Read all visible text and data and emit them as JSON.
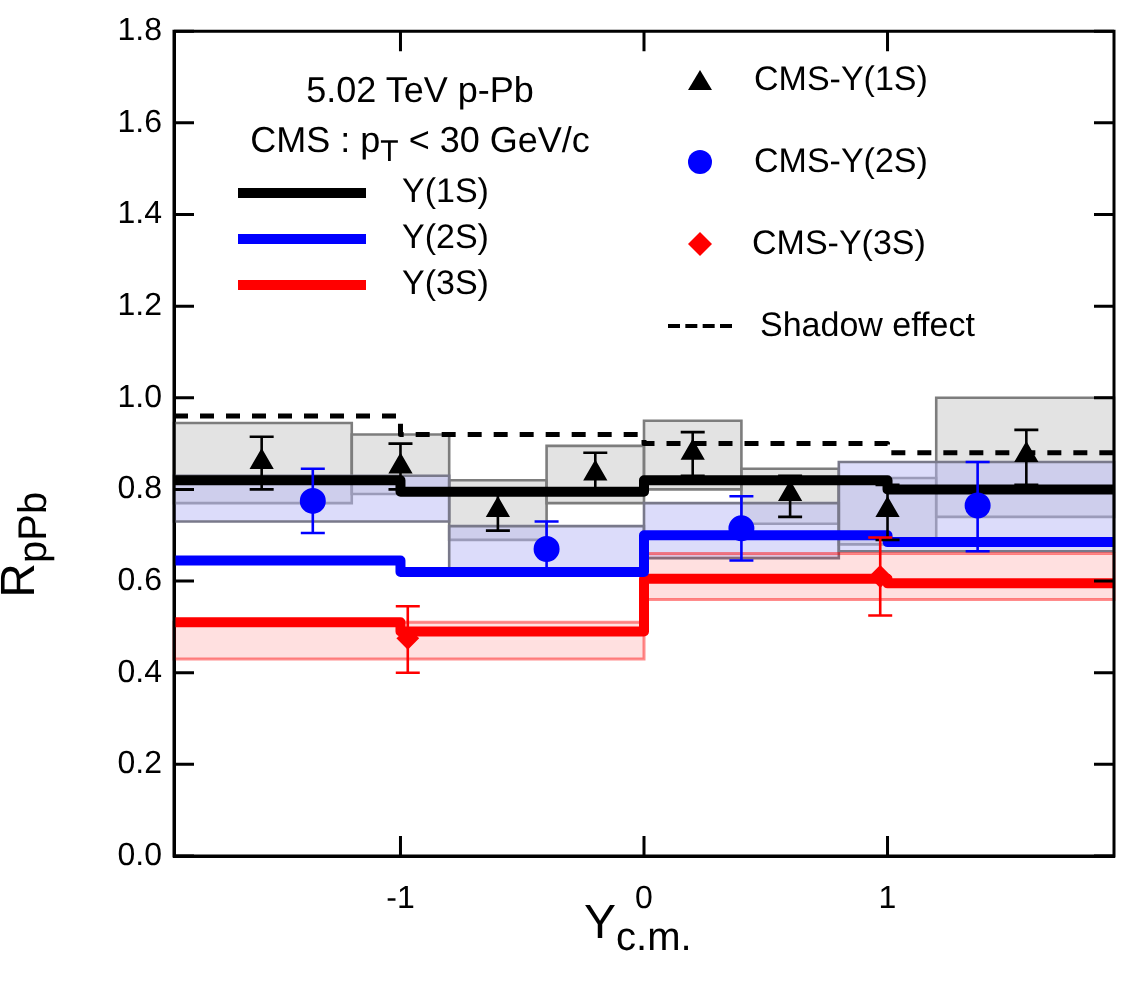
{
  "chart_data": {
    "type": "step",
    "xlabel": "Y$_{c.m.}$",
    "ylabel": "R$_{pPb}$",
    "annotations": [
      "5.02 TeV p-Pb",
      "CMS : p$_{T}$ < 30 GeV/c"
    ],
    "xlim": [
      -1.93,
      1.93
    ],
    "xticks": [
      -1,
      0,
      1
    ],
    "ylim": [
      0,
      1.8
    ],
    "yticks": [
      {
        "value": 0,
        "label": "0.0"
      },
      0.2,
      0.4,
      0.6,
      0.8,
      {
        "value": 1,
        "label": "1.0"
      },
      1.2,
      1.4,
      1.6,
      1.8
    ],
    "legend": "top",
    "x": [
      -1.93,
      -1,
      0,
      1,
      1.93
    ],
    "series": [
      {
        "type": "histogram",
        "color": "#e3e3e3",
        "bins": [
          -1.93,
          -1.2,
          -0.8,
          -0.4,
          0,
          0.4,
          0.8,
          1.2,
          1.93
        ],
        "base": [
          0.77,
          0.79,
          0.69,
          0.77,
          0.8,
          0.725,
          0.68,
          0.74
        ],
        "values": [
          0.175,
          0.13,
          0.13,
          0.125,
          0.15,
          0.12,
          0.145,
          0.26
        ]
      },
      {
        "type": "histogram",
        "color": "#dcdcfa",
        "bins": [
          -1.93,
          -0.8,
          0,
          0.8,
          1.93
        ],
        "base": [
          0.73,
          0.62,
          0.65,
          0.665
        ],
        "values": [
          0.1,
          0.1,
          0.12,
          0.195
        ]
      },
      {
        "name": "Y(1S)",
        "color": "#000000",
        "values": [
          0.82,
          0.795,
          0.82,
          0.8,
          0.8
        ]
      },
      {
        "name": "Y(2S)",
        "color": "#0000ff",
        "values": [
          0.645,
          0.62,
          0.7,
          0.685,
          0.685
        ]
      },
      {
        "name": "Y(3S)",
        "color": "#ff0000",
        "values": [
          0.51,
          0.49,
          0.605,
          0.595,
          0.595
        ],
        "lower": [
          0.43,
          0.43,
          0.56,
          0.56,
          0.56
        ],
        "upper": [
          0.51,
          0.51,
          0.66,
          0.66,
          0.66
        ]
      },
      {
        "name": "CMS-Y(1S)",
        "type": "scatter",
        "marker": "triangle",
        "color": "#000000",
        "x": [
          -1.57,
          -1.0,
          -0.6,
          -0.2,
          0.2,
          0.6,
          1.0,
          1.57
        ],
        "values": [
          0.86,
          0.85,
          0.755,
          0.835,
          0.88,
          0.79,
          0.755,
          0.875
        ],
        "errors": [
          [
            0.8,
            0.915
          ],
          [
            0.8,
            0.9
          ],
          [
            0.71,
            0.8
          ],
          [
            0.8,
            0.88
          ],
          [
            0.83,
            0.925
          ],
          [
            0.74,
            0.83
          ],
          [
            0.69,
            0.81
          ],
          [
            0.81,
            0.93
          ]
        ]
      },
      {
        "name": "CMS-Y(2S)",
        "type": "scatter",
        "marker": "circle",
        "color": "#0000ff",
        "x": [
          -1.36,
          -0.4,
          0.4,
          1.37
        ],
        "values": [
          0.775,
          0.67,
          0.715,
          0.765
        ],
        "errors": [
          [
            0.705,
            0.845
          ],
          [
            0.625,
            0.73
          ],
          [
            0.645,
            0.785
          ],
          [
            0.665,
            0.86
          ]
        ]
      },
      {
        "name": "CMS-Y(3S)",
        "type": "scatter",
        "marker": "diamond",
        "color": "#ff0000",
        "x": [
          -0.97,
          0.97
        ],
        "values": [
          0.475,
          0.61
        ],
        "errors": [
          [
            0.4,
            0.545
          ],
          [
            0.525,
            0.695
          ]
        ]
      },
      {
        "name": "Shadow effect",
        "color": "#000000",
        "line_style": "dashed",
        "values": [
          0.96,
          0.92,
          0.9,
          0.88,
          0.88
        ]
      }
    ]
  }
}
